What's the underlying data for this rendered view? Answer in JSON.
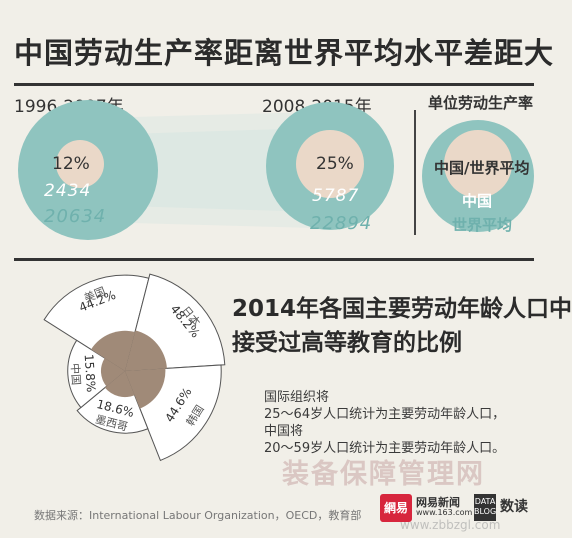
{
  "title": "中国劳动生产率距离世界平均水平差距大",
  "productivity": {
    "period1": "1996-2007年",
    "period2": "2008-2015年",
    "unit_label": "单位劳动生产率",
    "p1_pct": "12%",
    "p1_china": "2434",
    "p1_world": "20634",
    "p2_pct": "25%",
    "p2_china": "5787",
    "p2_world": "22894",
    "legend_ratio": "中国/世界平均",
    "legend_china": "中国",
    "legend_world": "世界平均"
  },
  "education": {
    "title_line1": "2014年各国主要劳动年龄人口中",
    "title_line2": "接受过高等教育的比例",
    "note_line1": "国际组织将",
    "note_line2": "25～64岁人口统计为主要劳动年龄人口，",
    "note_line3": "中国将",
    "note_line4": "20～59岁人口统计为主要劳动年龄人口。"
  },
  "chart_data": {
    "type": "pie",
    "title": "2014年各国主要劳动年龄人口中接受过高等教育的比例",
    "categories": [
      "美国",
      "日本",
      "韩国",
      "墨西哥",
      "中国"
    ],
    "values": [
      44.2,
      48.2,
      44.6,
      18.6,
      15.8
    ],
    "labels": [
      "44.2%",
      "48.2%",
      "44.6%",
      "18.6%",
      "15.8%"
    ]
  },
  "footer": {
    "source": "数据来源：International Labour Organization，OECD，教育部",
    "watermark": "装备保障管理网",
    "watermark_url": "www.zbbzgl.com",
    "logo_netease": "網易",
    "logo_news": "网易新闻",
    "logo_news_url": "www.163.com",
    "logo_data": "数读",
    "logo_tag": "DATA BLOG"
  },
  "colors": {
    "teal": "#8fc4bf",
    "beige": "#ead8c8",
    "brown": "#a08a78",
    "background": "#f1efe8"
  }
}
